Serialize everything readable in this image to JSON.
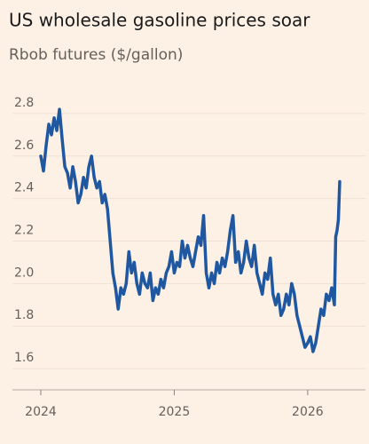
{
  "chart_data": {
    "type": "line",
    "title": "US wholesale gasoline prices soar",
    "subtitle": "Rbob futures ($/gallon)",
    "x": [
      2024,
      2024.02,
      2024.04,
      2024.06,
      2024.08,
      2024.1,
      2024.12,
      2024.14,
      2024.16,
      2024.18,
      2024.2,
      2024.22,
      2024.24,
      2024.26,
      2024.28,
      2024.3,
      2024.32,
      2024.34,
      2024.36,
      2024.38,
      2024.4,
      2024.42,
      2024.44,
      2024.46,
      2024.48,
      2024.5,
      2024.52,
      2024.54,
      2024.56,
      2024.58,
      2024.6,
      2024.62,
      2024.64,
      2024.66,
      2024.68,
      2024.7,
      2024.72,
      2024.74,
      2024.76,
      2024.78,
      2024.8,
      2024.82,
      2024.84,
      2024.86,
      2024.88,
      2024.9,
      2024.92,
      2024.94,
      2024.96,
      2024.98,
      2025,
      2025.02,
      2025.04,
      2025.06,
      2025.08,
      2025.1,
      2025.12,
      2025.14,
      2025.16,
      2025.18,
      2025.2,
      2025.22,
      2025.24,
      2025.26,
      2025.28,
      2025.3,
      2025.32,
      2025.34,
      2025.36,
      2025.38,
      2025.4,
      2025.42,
      2025.44,
      2025.46,
      2025.48,
      2025.5,
      2025.52,
      2025.54,
      2025.56,
      2025.58,
      2025.6,
      2025.62,
      2025.64,
      2025.66,
      2025.68,
      2025.7,
      2025.72,
      2025.74,
      2025.76,
      2025.78,
      2025.8,
      2025.82,
      2025.84,
      2025.86,
      2025.88,
      2025.9,
      2025.92,
      2025.94,
      2025.96,
      2025.98,
      2026,
      2026.02,
      2026.04,
      2026.06,
      2026.08,
      2026.1,
      2026.12,
      2026.14,
      2026.16,
      2026.18,
      2026.2,
      2026.21,
      2026.22,
      2026.23,
      2026.24
    ],
    "series": [
      {
        "color": "#1f57a0",
        "values": [
          2.6,
          2.53,
          2.65,
          2.75,
          2.7,
          2.78,
          2.72,
          2.82,
          2.68,
          2.55,
          2.52,
          2.45,
          2.55,
          2.48,
          2.38,
          2.42,
          2.5,
          2.45,
          2.55,
          2.6,
          2.5,
          2.45,
          2.48,
          2.38,
          2.42,
          2.35,
          2.2,
          2.05,
          1.98,
          1.88,
          1.98,
          1.95,
          2.0,
          2.15,
          2.05,
          2.1,
          2.0,
          1.95,
          2.05,
          2.0,
          1.98,
          2.05,
          1.92,
          1.98,
          1.95,
          2.02,
          1.98,
          2.05,
          2.08,
          2.15,
          2.05,
          2.1,
          2.08,
          2.2,
          2.12,
          2.18,
          2.12,
          2.08,
          2.15,
          2.22,
          2.18,
          2.32,
          2.05,
          1.98,
          2.05,
          2.0,
          2.1,
          2.05,
          2.12,
          2.08,
          2.15,
          2.25,
          2.32,
          2.1,
          2.15,
          2.05,
          2.1,
          2.2,
          2.12,
          2.08,
          2.18,
          2.05,
          2.0,
          1.95,
          2.05,
          2.02,
          2.12,
          1.95,
          1.9,
          1.95,
          1.85,
          1.88,
          1.95,
          1.9,
          2.0,
          1.95,
          1.85,
          1.8,
          1.75,
          1.7,
          1.72,
          1.75,
          1.68,
          1.72,
          1.8,
          1.88,
          1.85,
          1.95,
          1.92,
          1.98,
          1.9,
          2.22,
          2.25,
          2.3,
          2.48
        ]
      }
    ],
    "xlim": [
      2024,
      2026.3
    ],
    "xticks": [
      2024,
      2025,
      2026
    ],
    "ylim": [
      1.5,
      2.9
    ],
    "yticks": [
      1.6,
      1.8,
      {
        "value": 2,
        "label": "2.0"
      },
      2.2,
      2.4,
      2.6,
      2.8
    ],
    "grid": true
  }
}
